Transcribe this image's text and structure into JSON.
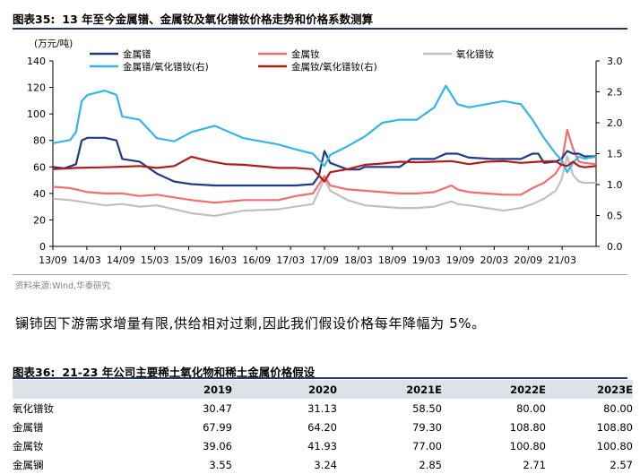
{
  "figure": {
    "number": "图表35:",
    "title": "13 年至今金属镨、金属钕及氧化镨钕价格走势和价格系数测算",
    "source": "资料来源:Wind,华泰研究"
  },
  "paragraph": "镧铈因下游需求增量有限,供给相对过剩,因此我们假设价格每年降幅为 5%。",
  "table": {
    "number": "图表36:",
    "title": "21-23 年公司主要稀土氧化物和稀土金属价格假设",
    "headers": [
      "",
      "2019",
      "2020",
      "2021E",
      "2022E",
      "2023E"
    ],
    "rows": [
      [
        "氧化镨钕",
        "30.47",
        "31.13",
        "58.50",
        "80.00",
        "80.00"
      ],
      [
        "金属镨",
        "67.99",
        "64.20",
        "79.30",
        "108.80",
        "108.80"
      ],
      [
        "金属钕",
        "39.06",
        "41.93",
        "77.00",
        "100.80",
        "100.80"
      ],
      [
        "金属镧",
        "3.55",
        "3.24",
        "2.85",
        "2.71",
        "2.57"
      ]
    ]
  },
  "chart_data": {
    "type": "line",
    "unit_label": "(万元/吨)",
    "x_ticks": [
      "13/09",
      "14/03",
      "14/09",
      "15/03",
      "15/09",
      "16/03",
      "16/09",
      "17/03",
      "17/09",
      "18/03",
      "18/09",
      "19/03",
      "19/09",
      "20/03",
      "20/09",
      "21/03"
    ],
    "x_range": [
      "2013-09",
      "2021-07"
    ],
    "y_left": {
      "min": 0,
      "max": 140,
      "ticks": [
        0,
        20,
        40,
        60,
        80,
        100,
        120,
        140
      ]
    },
    "y_right": {
      "min": 0.0,
      "max": 3.0,
      "ticks": [
        "0.0",
        "0.5",
        "1.0",
        "1.5",
        "2.0",
        "2.5",
        "3.0"
      ]
    },
    "legend": [
      {
        "label": "金属镨",
        "color": "#1f3b82"
      },
      {
        "label": "金属钕",
        "color": "#f06e6e"
      },
      {
        "label": "氧化镨钕",
        "color": "#c0c0c0"
      },
      {
        "label": "金属镨/氧化镨钕(右)",
        "color": "#33b5e5"
      },
      {
        "label": "金属钕/氧化镨钕(右)",
        "color": "#b01c1c"
      }
    ],
    "series": [
      {
        "name": "金属镨",
        "axis": "left",
        "color": "#1f3b82",
        "points": [
          [
            "2013-09",
            60
          ],
          [
            "2013-11",
            59
          ],
          [
            "2014-01",
            62
          ],
          [
            "2014-02",
            80
          ],
          [
            "2014-03",
            82
          ],
          [
            "2014-06",
            82
          ],
          [
            "2014-08",
            80
          ],
          [
            "2014-09",
            66
          ],
          [
            "2014-12",
            64
          ],
          [
            "2015-03",
            55
          ],
          [
            "2015-06",
            49
          ],
          [
            "2015-09",
            47
          ],
          [
            "2016-01",
            46
          ],
          [
            "2016-06",
            46
          ],
          [
            "2016-12",
            46
          ],
          [
            "2017-03",
            46
          ],
          [
            "2017-06",
            47
          ],
          [
            "2017-07",
            53
          ],
          [
            "2017-08",
            72
          ],
          [
            "2017-09",
            63
          ],
          [
            "2017-12",
            58
          ],
          [
            "2018-02",
            58
          ],
          [
            "2018-03",
            60
          ],
          [
            "2018-06",
            60
          ],
          [
            "2018-09",
            60
          ],
          [
            "2018-11",
            66
          ],
          [
            "2019-03",
            66
          ],
          [
            "2019-05",
            70
          ],
          [
            "2019-07",
            70
          ],
          [
            "2019-09",
            67
          ],
          [
            "2020-01",
            66
          ],
          [
            "2020-03",
            66
          ],
          [
            "2020-06",
            66
          ],
          [
            "2020-08",
            70
          ],
          [
            "2020-09",
            70
          ],
          [
            "2020-10",
            63
          ],
          [
            "2020-12",
            64
          ],
          [
            "2021-01",
            66
          ],
          [
            "2021-02",
            72
          ],
          [
            "2021-03",
            70
          ],
          [
            "2021-04",
            70
          ],
          [
            "2021-05",
            68
          ],
          [
            "2021-07",
            68
          ]
        ]
      },
      {
        "name": "金属钕",
        "axis": "left",
        "color": "#f06e6e",
        "points": [
          [
            "2013-09",
            45
          ],
          [
            "2013-12",
            44
          ],
          [
            "2014-03",
            41
          ],
          [
            "2014-06",
            40
          ],
          [
            "2014-09",
            40
          ],
          [
            "2014-12",
            38
          ],
          [
            "2015-03",
            39
          ],
          [
            "2015-06",
            37
          ],
          [
            "2015-09",
            35
          ],
          [
            "2016-01",
            33
          ],
          [
            "2016-06",
            35
          ],
          [
            "2016-12",
            35
          ],
          [
            "2017-03",
            38
          ],
          [
            "2017-06",
            40
          ],
          [
            "2017-08",
            53
          ],
          [
            "2017-09",
            46
          ],
          [
            "2017-12",
            43
          ],
          [
            "2018-03",
            42
          ],
          [
            "2018-06",
            41
          ],
          [
            "2018-09",
            40
          ],
          [
            "2018-12",
            40
          ],
          [
            "2019-03",
            41
          ],
          [
            "2019-06",
            46
          ],
          [
            "2019-07",
            43
          ],
          [
            "2019-09",
            41
          ],
          [
            "2019-12",
            40
          ],
          [
            "2020-03",
            39
          ],
          [
            "2020-06",
            39
          ],
          [
            "2020-08",
            44
          ],
          [
            "2020-10",
            48
          ],
          [
            "2020-12",
            55
          ],
          [
            "2021-01",
            62
          ],
          [
            "2021-02",
            88
          ],
          [
            "2021-03",
            74
          ],
          [
            "2021-04",
            64
          ],
          [
            "2021-05",
            63
          ],
          [
            "2021-07",
            62
          ]
        ]
      },
      {
        "name": "氧化镨钕",
        "axis": "left",
        "color": "#c0c0c0",
        "points": [
          [
            "2013-09",
            36
          ],
          [
            "2013-12",
            35
          ],
          [
            "2014-03",
            33
          ],
          [
            "2014-06",
            31
          ],
          [
            "2014-09",
            32
          ],
          [
            "2014-12",
            30
          ],
          [
            "2015-03",
            31
          ],
          [
            "2015-06",
            28
          ],
          [
            "2015-09",
            25
          ],
          [
            "2016-01",
            23
          ],
          [
            "2016-06",
            27
          ],
          [
            "2016-12",
            28
          ],
          [
            "2017-03",
            30
          ],
          [
            "2017-06",
            32
          ],
          [
            "2017-08",
            51
          ],
          [
            "2017-09",
            42
          ],
          [
            "2017-12",
            35
          ],
          [
            "2018-03",
            31
          ],
          [
            "2018-06",
            30
          ],
          [
            "2018-09",
            29
          ],
          [
            "2018-12",
            29
          ],
          [
            "2019-03",
            30
          ],
          [
            "2019-06",
            34
          ],
          [
            "2019-07",
            32
          ],
          [
            "2019-09",
            31
          ],
          [
            "2019-12",
            29
          ],
          [
            "2020-03",
            27
          ],
          [
            "2020-06",
            29
          ],
          [
            "2020-08",
            32
          ],
          [
            "2020-10",
            36
          ],
          [
            "2020-12",
            42
          ],
          [
            "2021-01",
            50
          ],
          [
            "2021-02",
            68
          ],
          [
            "2021-03",
            54
          ],
          [
            "2021-04",
            49
          ],
          [
            "2021-05",
            48
          ],
          [
            "2021-07",
            48
          ]
        ]
      },
      {
        "name": "金属镨/氧化镨钕(右)",
        "axis": "right",
        "color": "#33b5e5",
        "points": [
          [
            "2013-09",
            1.67
          ],
          [
            "2013-12",
            1.72
          ],
          [
            "2014-01",
            1.85
          ],
          [
            "2014-02",
            2.35
          ],
          [
            "2014-03",
            2.45
          ],
          [
            "2014-06",
            2.52
          ],
          [
            "2014-08",
            2.45
          ],
          [
            "2014-09",
            2.1
          ],
          [
            "2014-12",
            2.05
          ],
          [
            "2015-03",
            1.75
          ],
          [
            "2015-06",
            1.7
          ],
          [
            "2015-09",
            1.85
          ],
          [
            "2016-01",
            1.95
          ],
          [
            "2016-06",
            1.75
          ],
          [
            "2016-12",
            1.65
          ],
          [
            "2017-03",
            1.57
          ],
          [
            "2017-06",
            1.5
          ],
          [
            "2017-08",
            1.3
          ],
          [
            "2017-09",
            1.48
          ],
          [
            "2017-12",
            1.62
          ],
          [
            "2018-03",
            1.78
          ],
          [
            "2018-06",
            2.0
          ],
          [
            "2018-09",
            2.05
          ],
          [
            "2018-12",
            2.05
          ],
          [
            "2019-03",
            2.25
          ],
          [
            "2019-05",
            2.6
          ],
          [
            "2019-07",
            2.3
          ],
          [
            "2019-09",
            2.25
          ],
          [
            "2019-12",
            2.3
          ],
          [
            "2020-03",
            2.35
          ],
          [
            "2020-06",
            2.3
          ],
          [
            "2020-08",
            2.05
          ],
          [
            "2020-10",
            1.75
          ],
          [
            "2020-12",
            1.5
          ],
          [
            "2021-01",
            1.4
          ],
          [
            "2021-02",
            1.2
          ],
          [
            "2021-03",
            1.35
          ],
          [
            "2021-04",
            1.45
          ],
          [
            "2021-05",
            1.42
          ],
          [
            "2021-07",
            1.45
          ]
        ]
      },
      {
        "name": "金属钕/氧化镨钕(右)",
        "axis": "right",
        "color": "#b01c1c",
        "points": [
          [
            "2013-09",
            1.25
          ],
          [
            "2014-01",
            1.27
          ],
          [
            "2014-06",
            1.28
          ],
          [
            "2014-12",
            1.3
          ],
          [
            "2015-03",
            1.27
          ],
          [
            "2015-06",
            1.3
          ],
          [
            "2015-09",
            1.45
          ],
          [
            "2015-12",
            1.38
          ],
          [
            "2016-03",
            1.33
          ],
          [
            "2016-06",
            1.32
          ],
          [
            "2016-12",
            1.27
          ],
          [
            "2017-03",
            1.27
          ],
          [
            "2017-06",
            1.25
          ],
          [
            "2017-08",
            1.05
          ],
          [
            "2017-09",
            1.2
          ],
          [
            "2017-12",
            1.25
          ],
          [
            "2018-03",
            1.32
          ],
          [
            "2018-06",
            1.34
          ],
          [
            "2018-09",
            1.37
          ],
          [
            "2018-12",
            1.36
          ],
          [
            "2019-03",
            1.37
          ],
          [
            "2019-06",
            1.38
          ],
          [
            "2019-09",
            1.33
          ],
          [
            "2019-12",
            1.37
          ],
          [
            "2020-03",
            1.38
          ],
          [
            "2020-06",
            1.35
          ],
          [
            "2020-09",
            1.37
          ],
          [
            "2020-12",
            1.38
          ],
          [
            "2021-01",
            1.32
          ],
          [
            "2021-02",
            1.3
          ],
          [
            "2021-03",
            1.37
          ],
          [
            "2021-04",
            1.3
          ],
          [
            "2021-05",
            1.28
          ],
          [
            "2021-07",
            1.3
          ]
        ]
      }
    ]
  }
}
